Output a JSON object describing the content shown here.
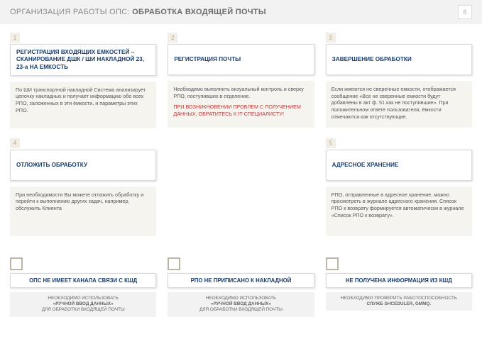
{
  "header": {
    "prefix": "ОРГАНИЗАЦИЯ РАБОТЫ ОПС: ",
    "bold": "ОБРАБОТКА ВХОДЯЩЕЙ ПОЧТЫ",
    "page": "6"
  },
  "row1": {
    "c1": {
      "num": "1",
      "title": "РЕГИСТРАЦИЯ ВХОДЯЩИХ ЕМКОСТЕЙ – СКАНИРОВАНИЕ ДШК / ШИ НАКЛАДНОЙ 23, 23-а НА ЕМКОСТЬ",
      "body": "По ШИ транспортной накладной Система анализирует цепочку накладных и получает информацию обо всех РПО, заложенных в эти ёмкости, и параметры этих РПО."
    },
    "c2": {
      "num": "2",
      "title": "РЕГИСТРАЦИЯ ПОЧТЫ",
      "body": "Необходимо выполнить визуальный контроль и сверку РПО, поступивших в отделение.",
      "warn": "ПРИ ВОЗНИКНОВЕНИИ ПРОБЛЕМ С ПОЛУЧЕНИЕМ ДАННЫХ, ОБРАТИТЕСЬ К IT-СПЕЦИАЛИСТУ!"
    },
    "c3": {
      "num": "3",
      "title": "ЗАВЕРШЕНИЕ ОБРАБОТКИ",
      "body": "Если имеются не сверенные емкости, отображается сообщение «Все не сверенные емкости будут добавлены в акт ф. 51 как не поступившие». При положительном ответе пользователя, ёмкости отмечаются как отсутствующие."
    }
  },
  "row2": {
    "c4": {
      "num": "4",
      "title": "ОТЛОЖИТЬ ОБРАБОТКУ",
      "body": "При необходимости Вы можете отложить обработку и перейти к выполнению других задач, например, обслужить Клиента"
    },
    "c5": {
      "num": "5",
      "title": "АДРЕСНОЕ ХРАНЕНИЕ",
      "body": "РПО, отправленные в адресное хранение, можно просмотреть в журнале адресного хранения. Список РПО к возврату формируется автоматически в журнале «Список РПО к возврату»."
    }
  },
  "footer": {
    "f1": {
      "head": "ОПС НЕ ИМЕЕТ КАНАЛА СВЯЗИ С КШД",
      "body1": "НЕОБХОДИМО ИСПОЛЬЗОВАТЬ",
      "em": "«РУЧНОЙ ВВОД ДАННЫХ»",
      "body2": "ДЛЯ ОБРАБОТКИ ВХОДЯЩЕЙ ПОЧТЫ"
    },
    "f2": {
      "head": "РПО НЕ ПРИПИСАНО К НАКЛАДНОЙ",
      "body1": "НЕОБХОДИМО ИСПОЛЬЗОВАТЬ",
      "em": "«РУЧНОЙ ВВОД ДАННЫХ»",
      "body2": "ДЛЯ ОБРАБОТКИ ВХОДЯЩЕЙ ПОЧТЫ"
    },
    "f3": {
      "head": "НЕ ПОЛУЧЕНА ИНФОРМАЦИЯ ИЗ КШД",
      "body1": "НЕОБХОДИМО ПРОВЕРИТЬ РАБОТОСПОСОБНОСТЬ",
      "em": "СЛУЖБ SHCEDULER, GMMQ.",
      "body2": ""
    }
  }
}
